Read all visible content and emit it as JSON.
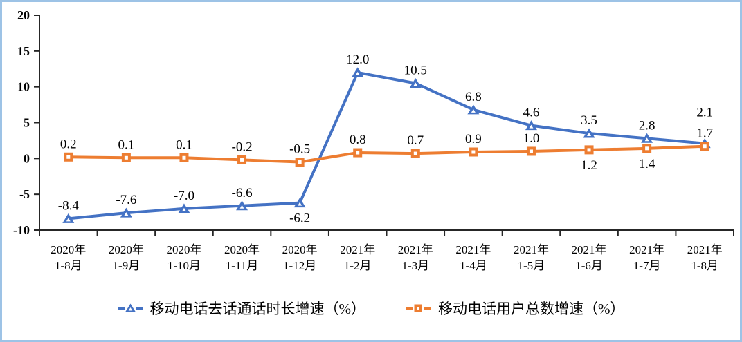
{
  "frame": {
    "border_color": "#9DC3E6",
    "background_color": "#FFFFFF"
  },
  "chart_data": {
    "type": "line",
    "categories": [
      {
        "line1": "2020年",
        "line2": "1-8月"
      },
      {
        "line1": "2020年",
        "line2": "1-9月"
      },
      {
        "line1": "2020年",
        "line2": "1-10月"
      },
      {
        "line1": "2020年",
        "line2": "1-11月"
      },
      {
        "line1": "2020年",
        "line2": "1-12月"
      },
      {
        "line1": "2021年",
        "line2": "1-2月"
      },
      {
        "line1": "2021年",
        "line2": "1-3月"
      },
      {
        "line1": "2021年",
        "line2": "1-4月"
      },
      {
        "line1": "2021年",
        "line2": "1-5月"
      },
      {
        "line1": "2021年",
        "line2": "1-6月"
      },
      {
        "line1": "2021年",
        "line2": "1-7月"
      },
      {
        "line1": "2021年",
        "line2": "1-8月"
      }
    ],
    "series": [
      {
        "name": "移动电话去话通话时长增速（%）",
        "color": "#4472C4",
        "marker": "triangle",
        "values": [
          -8.4,
          -7.6,
          -7.0,
          -6.6,
          -6.2,
          12.0,
          10.5,
          6.8,
          4.6,
          3.5,
          2.8,
          2.1
        ],
        "labels": [
          "-8.4",
          "-7.6",
          "-7.0",
          "-6.6",
          "-6.2",
          "12.0",
          "10.5",
          "6.8",
          "4.6",
          "3.5",
          "2.8",
          "2.1"
        ],
        "label_position": [
          "above",
          "above",
          "above",
          "above",
          "below",
          "above",
          "above",
          "above",
          "above",
          "above",
          "above",
          "above2"
        ]
      },
      {
        "name": "移动电话用户总数增速（%）",
        "color": "#ED7D31",
        "marker": "square",
        "values": [
          0.2,
          0.1,
          0.1,
          -0.2,
          -0.5,
          0.8,
          0.7,
          0.9,
          1.0,
          1.2,
          1.4,
          1.7
        ],
        "labels": [
          "0.2",
          "0.1",
          "0.1",
          "-0.2",
          "-0.5",
          "0.8",
          "0.7",
          "0.9",
          "1.0",
          "1.2",
          "1.4",
          "1.7"
        ],
        "label_position": [
          "above",
          "above",
          "above",
          "above",
          "above",
          "above",
          "above",
          "above",
          "above",
          "below",
          "below",
          "above"
        ]
      }
    ],
    "y_axis": {
      "min": -10,
      "max": 20,
      "step": 5,
      "tick_labels": [
        "20",
        "15",
        "10",
        "5",
        "0",
        "-5",
        "-10"
      ]
    },
    "x_axis": {
      "tick_marks": "between-categories"
    },
    "grid": "off",
    "legend_position": "bottom",
    "title": "",
    "xlabel": "",
    "ylabel": ""
  }
}
